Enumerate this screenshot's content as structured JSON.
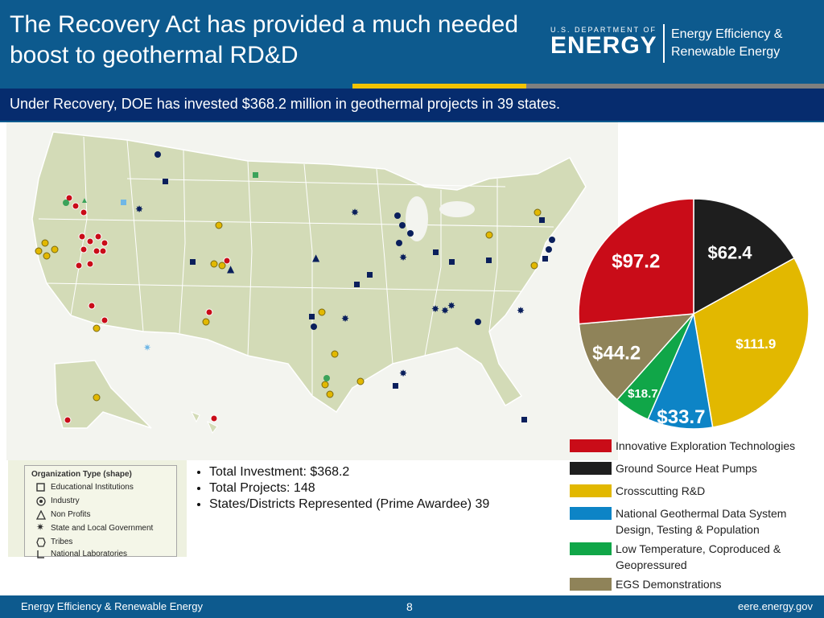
{
  "header": {
    "title": "The Recovery Act has provided a much needed boost to geothermal RD&D",
    "logo_small": "U.S. DEPARTMENT OF",
    "logo_big": "ENERGY",
    "logo_right_line1": "Energy Efficiency &",
    "logo_right_line2": "Renewable Energy",
    "stripe_colors": [
      "#0d5a8e",
      "#f2c300",
      "#7f7f7f"
    ]
  },
  "subtitle": "Under Recovery, DOE has invested $368.2 million in geothermal projects in 39 states.",
  "map_legend": {
    "heading": "Organization Type (shape)",
    "items": [
      {
        "label": "Educational Institutions",
        "icon": "square-icon"
      },
      {
        "label": "Industry",
        "icon": "target-icon"
      },
      {
        "label": "Non Profits",
        "icon": "triangle-icon"
      },
      {
        "label": "State and Local Government",
        "icon": "star-icon"
      },
      {
        "label": "Tribes",
        "icon": "hexagon-icon"
      },
      {
        "label": "National Laboratories",
        "icon": "corner-icon"
      }
    ]
  },
  "stats": [
    "Total Investment: $368.2",
    "Total Projects: 148",
    "States/Districts Represented (Prime Awardee) 39"
  ],
  "chart_data": {
    "type": "pie",
    "title": "",
    "categories": [
      "Ground Source Heat Pumps",
      "Crosscutting R&D",
      "National Geothermal Data System Design, Testing & Population",
      "Low Temperature, Coproduced & Geopressured",
      "EGS Demonstrations",
      "Innovative Exploration Technologies"
    ],
    "values": [
      62.4,
      111.9,
      33.7,
      18.7,
      44.2,
      97.2
    ],
    "value_labels": [
      "$62.4",
      "$111.9",
      "$33.7",
      "$18.7",
      "$44.2",
      "$97.2"
    ],
    "colors": [
      "#1e1e1e",
      "#e2b800",
      "#0d84c6",
      "#10a648",
      "#8f8359",
      "#c90c18"
    ],
    "label_colors": [
      "#ffffff",
      "#ffffff",
      "#ffffff",
      "#ffffff",
      "#ffffff",
      "#ffffff"
    ],
    "start_angle_deg": 0,
    "legend": [
      {
        "label": "Innovative Exploration Technologies",
        "color": "#c90c18"
      },
      {
        "label": "Ground Source Heat Pumps",
        "color": "#1e1e1e"
      },
      {
        "label": "Crosscutting R&D",
        "color": "#e2b800"
      },
      {
        "label": "National Geothermal Data System Design, Testing & Population",
        "color": "#0d84c6"
      },
      {
        "label": "Low Temperature, Coproduced & Geopressured",
        "color": "#10a648"
      },
      {
        "label": "EGS Demonstrations",
        "color": "#8f8359"
      }
    ]
  },
  "footer": {
    "left": "Energy Efficiency & Renewable Energy",
    "page": "8",
    "right": "eere.energy.gov"
  }
}
